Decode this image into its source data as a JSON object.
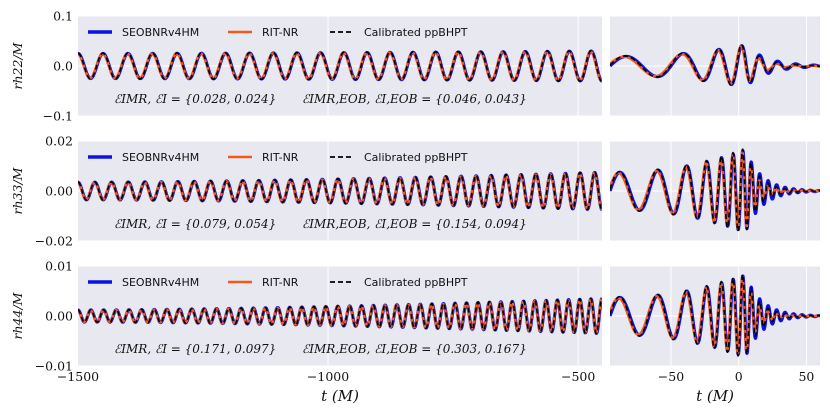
{
  "colors": {
    "background": "#e8e8f1",
    "grid": "#ffffff",
    "seobnr": "#0a10e6",
    "rit": "#f4581a",
    "ppbhpt": "#000000"
  },
  "chart_data": [
    {
      "type": "line",
      "row": 0,
      "panel": "inspiral",
      "xlim": [
        -1500,
        -1000
      ],
      "ylim": [
        -0.1,
        0.1
      ],
      "yticks": [
        0.1,
        0.0,
        -0.1
      ],
      "ytick_labels": [
        "0.1",
        "0.0",
        "−0.1"
      ],
      "ylabel": "rh22/M",
      "legend": [
        "SEOBNRv4HM",
        "RIT-NR",
        "Calibrated ppBHPT"
      ],
      "legend_loc": "top-left",
      "annotation_left": "ℰIMR, ℰI = {0.028, 0.024}",
      "annotation_right": "ℰIMR,EOB, ℰI,EOB = {0.046, 0.043}",
      "waveform": {
        "amp_start": 0.025,
        "amp_end": 0.03,
        "cycles": 22.5
      }
    },
    {
      "type": "line",
      "row": 0,
      "panel": "merger",
      "xlim": [
        -95,
        60
      ],
      "ylim": [
        -0.1,
        0.1
      ],
      "waveform": {
        "amp_peak": 0.042,
        "ringdown": "decaying"
      }
    },
    {
      "type": "line",
      "row": 1,
      "panel": "inspiral",
      "ylim": [
        -0.02,
        0.02
      ],
      "yticks": [
        0.02,
        0.0,
        -0.02
      ],
      "ytick_labels": [
        "0.02",
        "0.00",
        "−0.02"
      ],
      "ylabel": "rh33/M",
      "legend": [
        "SEOBNRv4HM",
        "RIT-NR",
        "Calibrated ppBHPT"
      ],
      "legend_loc": "top-left",
      "annotation_left": "ℰIMR, ℰI = {0.079, 0.054}",
      "annotation_right": "ℰIMR,EOB, ℰI,EOB = {0.154, 0.094}",
      "waveform": {
        "amp_start": 0.0035,
        "amp_end": 0.0075,
        "cycles": 33.5
      }
    },
    {
      "type": "line",
      "row": 1,
      "panel": "merger",
      "ylim": [
        -0.02,
        0.02
      ],
      "waveform": {
        "amp_peak": 0.0165,
        "ringdown": "chirp"
      }
    },
    {
      "type": "line",
      "row": 2,
      "panel": "inspiral",
      "xlim": [
        -1500,
        -1000
      ],
      "ylim": [
        -0.01,
        0.01
      ],
      "yticks": [
        0.01,
        0.0,
        -0.01
      ],
      "ytick_labels": [
        "0.01",
        "0.00",
        "−0.01"
      ],
      "xticks": [
        -1500,
        -1000,
        -500
      ],
      "xtick_labels": [
        "−1500",
        "−1000",
        "−500"
      ],
      "ylabel": "rh44/M",
      "xlabel": "t (M)",
      "legend": [
        "SEOBNRv4HM",
        "RIT-NR",
        "Calibrated ppBHPT"
      ],
      "legend_loc": "top-left",
      "annotation_left": "ℰIMR, ℰI = {0.171, 0.097}",
      "annotation_right": "ℰIMR,EOB, ℰI,EOB = {0.303, 0.167}",
      "waveform": {
        "amp_start": 0.0012,
        "amp_end": 0.0035,
        "cycles": 44
      }
    },
    {
      "type": "line",
      "row": 2,
      "panel": "merger",
      "ylim": [
        -0.01,
        0.01
      ],
      "xticks": [
        -50,
        0,
        50
      ],
      "xtick_labels": [
        "−50",
        "0",
        "50"
      ],
      "xlabel": "t (M)",
      "waveform": {
        "amp_peak": 0.0082,
        "ringdown": "chirp"
      }
    }
  ]
}
